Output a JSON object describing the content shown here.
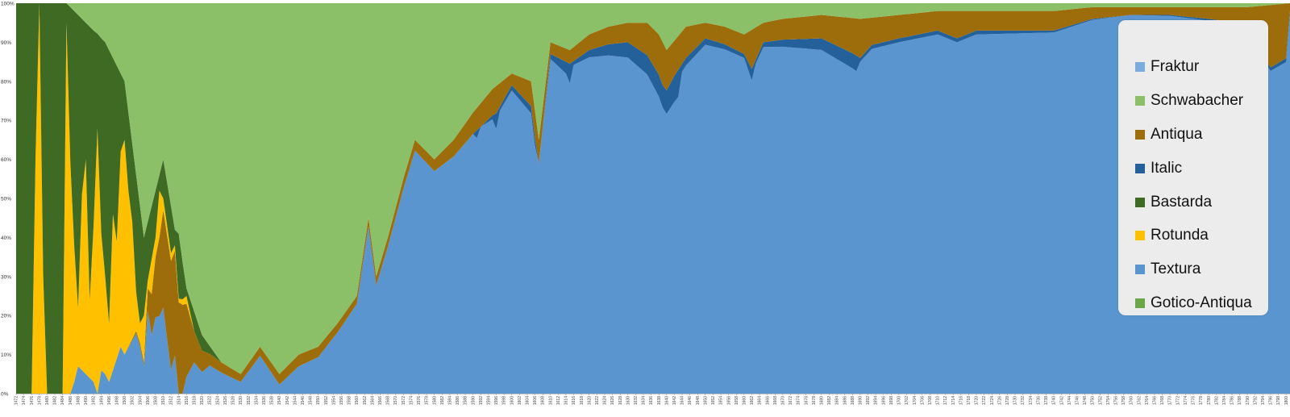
{
  "chart_data": {
    "type": "area",
    "stacked": true,
    "normalized_percent": true,
    "title": "",
    "xlabel": "",
    "ylabel": "",
    "ylim": [
      0,
      100
    ],
    "y_ticks": [
      "0%",
      "10%",
      "20%",
      "30%",
      "40%",
      "50%",
      "60%",
      "70%",
      "80%",
      "90%",
      "100%"
    ],
    "x_range": [
      1472,
      1801
    ],
    "x_tick_step": 2,
    "legend_position": "right",
    "grid": false,
    "stack_order_bottom_to_top": [
      "Textura",
      "Gotico-Antiqua",
      "Italic",
      "Antiqua",
      "Rotunda",
      "Bastarda",
      "Schwabacher",
      "Fraktur"
    ],
    "series": [
      {
        "name": "Fraktur",
        "color": "#7aaddd"
      },
      {
        "name": "Schwabacher",
        "color": "#8cc068"
      },
      {
        "name": "Antiqua",
        "color": "#9c6d0a"
      },
      {
        "name": "Italic",
        "color": "#24609a"
      },
      {
        "name": "Bastarda",
        "color": "#3e6a23"
      },
      {
        "name": "Rotunda",
        "color": "#ffc000"
      },
      {
        "name": "Textura",
        "color": "#5b95cf"
      },
      {
        "name": "Gotico-Antiqua",
        "color": "#6aa546"
      }
    ],
    "keypoints": {
      "Italic": [
        [
          1472,
          0
        ],
        [
          1590,
          0
        ],
        [
          1591,
          2
        ],
        [
          1592,
          0
        ],
        [
          1595,
          1
        ],
        [
          1596,
          4
        ],
        [
          1597,
          1
        ],
        [
          1606,
          2
        ],
        [
          1607,
          0
        ],
        [
          1614,
          3
        ],
        [
          1615,
          5
        ],
        [
          1616,
          1
        ],
        [
          1640,
          6
        ],
        [
          1643,
          7
        ],
        [
          1644,
          2
        ],
        [
          1660,
          1
        ],
        [
          1662,
          3
        ],
        [
          1663,
          1
        ],
        [
          1689,
          4
        ],
        [
          1690,
          1
        ],
        [
          1700,
          1
        ],
        [
          1720,
          1
        ],
        [
          1760,
          0
        ],
        [
          1801,
          1
        ]
      ],
      "Antiqua": [
        [
          1472,
          0
        ],
        [
          1500,
          0
        ],
        [
          1505,
          1
        ],
        [
          1510,
          25
        ],
        [
          1512,
          28
        ],
        [
          1515,
          24
        ],
        [
          1518,
          8
        ],
        [
          1522,
          3
        ],
        [
          1530,
          2
        ],
        [
          1545,
          3
        ],
        [
          1560,
          2
        ],
        [
          1580,
          3
        ],
        [
          1596,
          7
        ],
        [
          1600,
          3
        ],
        [
          1606,
          7
        ],
        [
          1610,
          3
        ],
        [
          1620,
          4
        ],
        [
          1630,
          5
        ],
        [
          1636,
          9
        ],
        [
          1639,
          11
        ],
        [
          1642,
          9
        ],
        [
          1645,
          8
        ],
        [
          1650,
          4
        ],
        [
          1660,
          5
        ],
        [
          1662,
          10
        ],
        [
          1665,
          5
        ],
        [
          1680,
          6
        ],
        [
          1688,
          9
        ],
        [
          1690,
          10
        ],
        [
          1693,
          7
        ],
        [
          1700,
          6
        ],
        [
          1710,
          5
        ],
        [
          1715,
          7
        ],
        [
          1720,
          5
        ],
        [
          1740,
          5
        ],
        [
          1750,
          3
        ],
        [
          1760,
          2
        ],
        [
          1770,
          2
        ],
        [
          1780,
          3
        ],
        [
          1788,
          4
        ],
        [
          1792,
          10
        ],
        [
          1794,
          13
        ],
        [
          1796,
          16
        ],
        [
          1798,
          15
        ],
        [
          1800,
          14
        ],
        [
          1801,
          2
        ]
      ],
      "Rotunda": [
        [
          1472,
          0
        ],
        [
          1476,
          0
        ],
        [
          1477,
          60
        ],
        [
          1478,
          100
        ],
        [
          1479,
          30
        ],
        [
          1480,
          0
        ],
        [
          1482,
          0
        ],
        [
          1484,
          0
        ],
        [
          1485,
          95
        ],
        [
          1486,
          60
        ],
        [
          1487,
          35
        ],
        [
          1488,
          15
        ],
        [
          1489,
          45
        ],
        [
          1490,
          55
        ],
        [
          1491,
          20
        ],
        [
          1492,
          40
        ],
        [
          1493,
          70
        ],
        [
          1494,
          35
        ],
        [
          1495,
          25
        ],
        [
          1496,
          15
        ],
        [
          1497,
          40
        ],
        [
          1498,
          30
        ],
        [
          1499,
          50
        ],
        [
          1500,
          55
        ],
        [
          1501,
          40
        ],
        [
          1502,
          30
        ],
        [
          1503,
          10
        ],
        [
          1504,
          5
        ],
        [
          1505,
          12
        ],
        [
          1506,
          2
        ],
        [
          1507,
          9
        ],
        [
          1508,
          5
        ],
        [
          1509,
          12
        ],
        [
          1510,
          3
        ],
        [
          1512,
          2
        ],
        [
          1514,
          1
        ],
        [
          1516,
          2
        ],
        [
          1518,
          0
        ],
        [
          1801,
          0
        ]
      ],
      "Bastarda": [
        [
          1472,
          100
        ],
        [
          1476,
          100
        ],
        [
          1477,
          40
        ],
        [
          1478,
          0
        ],
        [
          1479,
          70
        ],
        [
          1480,
          100
        ],
        [
          1484,
          100
        ],
        [
          1485,
          5
        ],
        [
          1486,
          40
        ],
        [
          1487,
          60
        ],
        [
          1488,
          75
        ],
        [
          1489,
          45
        ],
        [
          1490,
          35
        ],
        [
          1491,
          70
        ],
        [
          1492,
          50
        ],
        [
          1493,
          25
        ],
        [
          1494,
          50
        ],
        [
          1495,
          60
        ],
        [
          1496,
          70
        ],
        [
          1497,
          40
        ],
        [
          1498,
          45
        ],
        [
          1499,
          20
        ],
        [
          1500,
          15
        ],
        [
          1501,
          20
        ],
        [
          1502,
          20
        ],
        [
          1503,
          30
        ],
        [
          1504,
          30
        ],
        [
          1505,
          20
        ],
        [
          1506,
          15
        ],
        [
          1508,
          12
        ],
        [
          1509,
          4
        ],
        [
          1510,
          10
        ],
        [
          1512,
          12
        ],
        [
          1513,
          4
        ],
        [
          1514,
          18
        ],
        [
          1515,
          10
        ],
        [
          1516,
          2
        ],
        [
          1518,
          5
        ],
        [
          1520,
          4
        ],
        [
          1522,
          2
        ],
        [
          1525,
          0
        ],
        [
          1801,
          0
        ]
      ],
      "Schwabacher": [
        [
          1472,
          0
        ],
        [
          1480,
          0
        ],
        [
          1485,
          0
        ],
        [
          1490,
          5
        ],
        [
          1495,
          10
        ],
        [
          1500,
          20
        ],
        [
          1505,
          60
        ],
        [
          1510,
          40
        ],
        [
          1515,
          70
        ],
        [
          1520,
          85
        ],
        [
          1525,
          92
        ],
        [
          1530,
          95
        ],
        [
          1535,
          88
        ],
        [
          1540,
          95
        ],
        [
          1545,
          90
        ],
        [
          1550,
          88
        ],
        [
          1555,
          82
        ],
        [
          1560,
          75
        ],
        [
          1563,
          55
        ],
        [
          1565,
          70
        ],
        [
          1568,
          60
        ],
        [
          1572,
          45
        ],
        [
          1575,
          35
        ],
        [
          1580,
          40
        ],
        [
          1585,
          35
        ],
        [
          1590,
          28
        ],
        [
          1595,
          22
        ],
        [
          1600,
          18
        ],
        [
          1605,
          20
        ],
        [
          1607,
          35
        ],
        [
          1610,
          10
        ],
        [
          1615,
          12
        ],
        [
          1620,
          8
        ],
        [
          1625,
          6
        ],
        [
          1630,
          5
        ],
        [
          1635,
          5
        ],
        [
          1638,
          8
        ],
        [
          1640,
          12
        ],
        [
          1645,
          6
        ],
        [
          1650,
          5
        ],
        [
          1655,
          6
        ],
        [
          1660,
          8
        ],
        [
          1665,
          5
        ],
        [
          1670,
          4
        ],
        [
          1680,
          3
        ],
        [
          1690,
          4
        ],
        [
          1700,
          3
        ],
        [
          1710,
          2
        ],
        [
          1720,
          2
        ],
        [
          1730,
          2
        ],
        [
          1740,
          2
        ],
        [
          1750,
          1
        ],
        [
          1760,
          1
        ],
        [
          1770,
          1
        ],
        [
          1780,
          1
        ],
        [
          1790,
          1
        ],
        [
          1801,
          0
        ]
      ],
      "Fraktur": "remainder to 100%"
    }
  },
  "legend": {
    "items": [
      {
        "label": "Fraktur",
        "color": "#7aaddd"
      },
      {
        "label": "Schwabacher",
        "color": "#8cc068"
      },
      {
        "label": "Antiqua",
        "color": "#9c6d0a"
      },
      {
        "label": "Italic",
        "color": "#24609a"
      },
      {
        "label": "Bastarda",
        "color": "#3e6a23"
      },
      {
        "label": "Rotunda",
        "color": "#ffc000"
      },
      {
        "label": "Textura",
        "color": "#5b95cf"
      },
      {
        "label": "Gotico-Antiqua",
        "color": "#6aa546"
      }
    ]
  }
}
